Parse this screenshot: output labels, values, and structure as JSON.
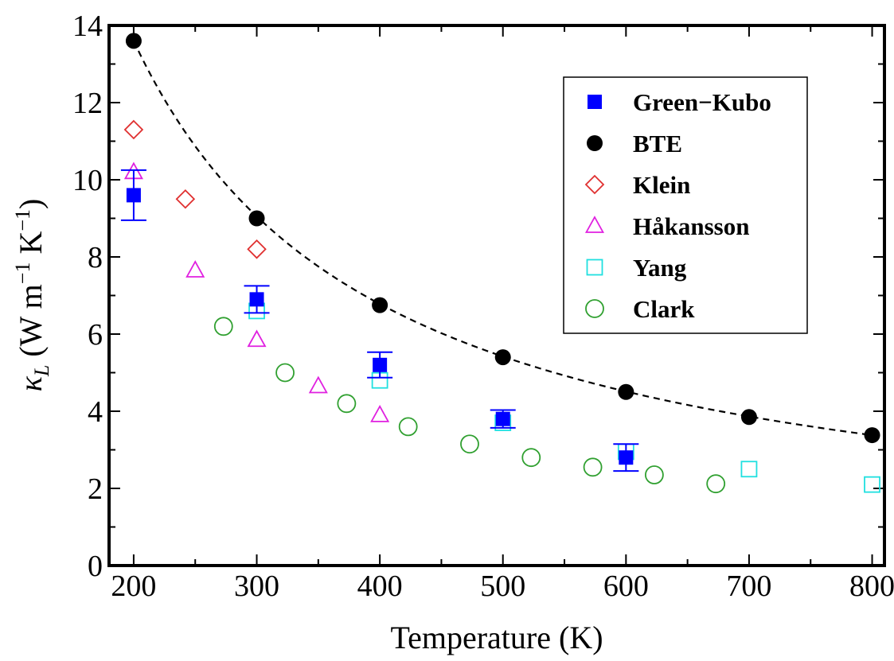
{
  "chart_data": {
    "type": "scatter",
    "xlabel": "Temperature (K)",
    "ylabel": {
      "symbol": "κ",
      "subscript": "L",
      "units_open": " (W m",
      "exp1": "−1",
      "units_mid": " K",
      "exp2": "−1",
      "units_close": ")"
    },
    "xlim": [
      180,
      810
    ],
    "ylim": [
      0,
      14
    ],
    "x_ticks": [
      200,
      300,
      400,
      500,
      600,
      700,
      800
    ],
    "y_ticks": [
      0,
      2,
      4,
      6,
      8,
      10,
      12,
      14
    ],
    "grid": false,
    "legend_position": "top-right",
    "series": [
      {
        "name": "Green−Kubo",
        "marker": "filled-square",
        "color": "#0000ff",
        "x": [
          200,
          300,
          400,
          500,
          600
        ],
        "y": [
          9.6,
          6.9,
          5.2,
          3.8,
          2.8
        ],
        "err": [
          0.65,
          0.35,
          0.33,
          0.23,
          0.35
        ]
      },
      {
        "name": "BTE",
        "marker": "filled-circle",
        "color": "#000000",
        "x": [
          200,
          300,
          400,
          500,
          600,
          700,
          800
        ],
        "y": [
          13.6,
          9.0,
          6.75,
          5.4,
          4.5,
          3.85,
          3.38
        ]
      },
      {
        "name": "Klein",
        "marker": "open-diamond",
        "color": "#e03030",
        "x": [
          200,
          242,
          300
        ],
        "y": [
          11.3,
          9.5,
          8.2
        ]
      },
      {
        "name": "Håkansson",
        "marker": "open-triangle",
        "color": "#e020e0",
        "x": [
          200,
          250,
          300,
          350,
          400
        ],
        "y": [
          10.2,
          7.65,
          5.85,
          4.65,
          3.9
        ]
      },
      {
        "name": "Yang",
        "marker": "open-square",
        "color": "#20e0e0",
        "x": [
          300,
          400,
          500,
          600,
          700,
          800
        ],
        "y": [
          6.6,
          4.8,
          3.7,
          2.95,
          2.5,
          2.1
        ]
      },
      {
        "name": "Clark",
        "marker": "open-circle",
        "color": "#30a030",
        "x": [
          273,
          323,
          373,
          423,
          473,
          523,
          573,
          623,
          673
        ],
        "y": [
          6.2,
          5.0,
          4.2,
          3.6,
          3.15,
          2.8,
          2.55,
          2.35,
          2.12
        ]
      }
    ],
    "fit_curve": {
      "style": "dashed",
      "color": "#000000",
      "x": [
        200,
        800
      ],
      "y": [
        13.6,
        3.38
      ]
    }
  }
}
